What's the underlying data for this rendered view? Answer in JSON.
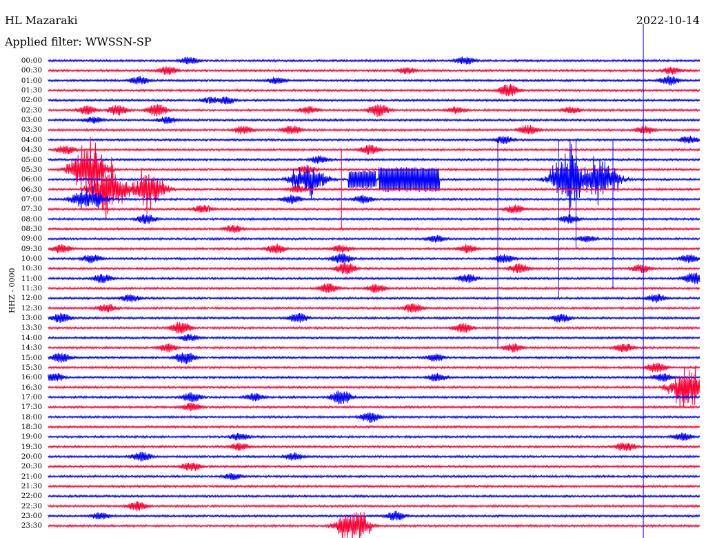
{
  "header": {
    "station": "HL Mazaraki",
    "date": "2022-10-14",
    "filter": "Applied filter: WWSSN-SP"
  },
  "channel_label": "HHZ - 0000",
  "colors": {
    "even_rows": "#0000ff",
    "odd_rows": "#ff0033",
    "marker": "#0000ff",
    "background": "#ffffff"
  },
  "chart_data": {
    "type": "line",
    "title": "HL Mazaraki",
    "subtitle": "Applied filter: WWSSN-SP",
    "ylabel": "HHZ - 0000",
    "grid": false,
    "row_labels": [
      "00:00",
      "00:30",
      "01:00",
      "01:30",
      "02:00",
      "02:30",
      "03:00",
      "03:30",
      "04:00",
      "04:30",
      "05:00",
      "05:30",
      "06:00",
      "06:30",
      "07:00",
      "07:30",
      "08:00",
      "08:30",
      "09:00",
      "09:30",
      "10:00",
      "10:30",
      "11:00",
      "11:30",
      "12:00",
      "12:30",
      "13:00",
      "13:30",
      "14:00",
      "14:30",
      "15:00",
      "15:30",
      "16:00",
      "16:30",
      "17:00",
      "17:30",
      "18:00",
      "18:30",
      "19:00",
      "19:30",
      "20:00",
      "20:30",
      "21:00",
      "21:30",
      "22:00",
      "22:30",
      "23:00",
      "23:30"
    ],
    "row_minutes": 30,
    "end_of_data_row": "00:00",
    "current_time_marker_minute": 27.4,
    "events": [
      {
        "row": "00:00",
        "minute": 6.5,
        "amp": 0.45
      },
      {
        "row": "00:00",
        "minute": 19.2,
        "amp": 0.5
      },
      {
        "row": "00:30",
        "minute": 5.5,
        "amp": 0.5
      },
      {
        "row": "00:30",
        "minute": 16.5,
        "amp": 0.4
      },
      {
        "row": "00:30",
        "minute": 28.7,
        "amp": 0.4
      },
      {
        "row": "01:00",
        "minute": 4.2,
        "amp": 0.5
      },
      {
        "row": "01:00",
        "minute": 10.5,
        "amp": 0.4
      },
      {
        "row": "01:00",
        "minute": 28.6,
        "amp": 0.55
      },
      {
        "row": "01:30",
        "minute": 21.2,
        "amp": 0.7
      },
      {
        "row": "02:00",
        "minute": 7.5,
        "amp": 0.4
      },
      {
        "row": "02:00",
        "minute": 8.2,
        "amp": 0.45
      },
      {
        "row": "02:30",
        "minute": 1.8,
        "amp": 0.5
      },
      {
        "row": "02:30",
        "minute": 3.2,
        "amp": 0.6
      },
      {
        "row": "02:30",
        "minute": 5.0,
        "amp": 0.7
      },
      {
        "row": "02:30",
        "minute": 12.0,
        "amp": 0.45
      },
      {
        "row": "02:30",
        "minute": 15.2,
        "amp": 0.75
      },
      {
        "row": "02:30",
        "minute": 18.8,
        "amp": 0.4
      },
      {
        "row": "02:30",
        "minute": 24.1,
        "amp": 0.4
      },
      {
        "row": "03:00",
        "minute": 2.1,
        "amp": 0.4
      },
      {
        "row": "03:00",
        "minute": 5.5,
        "amp": 0.45
      },
      {
        "row": "03:30",
        "minute": 9.0,
        "amp": 0.5
      },
      {
        "row": "03:30",
        "minute": 11.2,
        "amp": 0.5
      },
      {
        "row": "03:30",
        "minute": 22.1,
        "amp": 0.55
      },
      {
        "row": "03:30",
        "minute": 27.5,
        "amp": 0.5
      },
      {
        "row": "04:00",
        "minute": 21.0,
        "amp": 0.45
      },
      {
        "row": "04:00",
        "minute": 29.5,
        "amp": 0.45
      },
      {
        "row": "04:30",
        "minute": 0.8,
        "amp": 0.5
      },
      {
        "row": "04:30",
        "minute": 14.8,
        "amp": 0.55
      },
      {
        "row": "05:00",
        "minute": 12.5,
        "amp": 0.45
      },
      {
        "row": "05:30",
        "minute": 1.8,
        "amp": 1.6,
        "kind": "spikes"
      },
      {
        "row": "05:30",
        "minute": 11.9,
        "amp": 0.45
      },
      {
        "row": "06:00",
        "minute": 12.0,
        "amp": 1.2,
        "kind": "spikes"
      },
      {
        "row": "06:00",
        "minute": 13.8,
        "amp": 0.9,
        "kind": "block",
        "until": 15.1
      },
      {
        "row": "06:00",
        "minute": 15.2,
        "amp": 1.3,
        "kind": "block",
        "until": 18.0
      },
      {
        "row": "06:00",
        "minute": 24.0,
        "amp": 2.0,
        "kind": "spikes"
      },
      {
        "row": "06:00",
        "minute": 25.5,
        "amp": 1.5,
        "kind": "spikes"
      },
      {
        "row": "06:30",
        "minute": 2.8,
        "amp": 1.6,
        "kind": "spikes"
      },
      {
        "row": "06:30",
        "minute": 4.6,
        "amp": 1.2,
        "kind": "spikes"
      },
      {
        "row": "06:30",
        "minute": 11.5,
        "amp": 0.45
      },
      {
        "row": "07:00",
        "minute": 1.8,
        "amp": 0.8,
        "kind": "spikes"
      },
      {
        "row": "07:00",
        "minute": 11.2,
        "amp": 0.5
      },
      {
        "row": "07:00",
        "minute": 14.5,
        "amp": 0.5
      },
      {
        "row": "07:30",
        "minute": 7.1,
        "amp": 0.5
      },
      {
        "row": "07:30",
        "minute": 21.5,
        "amp": 0.5
      },
      {
        "row": "08:00",
        "minute": 4.5,
        "amp": 0.55
      },
      {
        "row": "08:00",
        "minute": 24.0,
        "amp": 0.5
      },
      {
        "row": "08:30",
        "minute": 8.5,
        "amp": 0.45
      },
      {
        "row": "09:00",
        "minute": 17.8,
        "amp": 0.45
      },
      {
        "row": "09:00",
        "minute": 24.8,
        "amp": 0.4
      },
      {
        "row": "09:30",
        "minute": 0.6,
        "amp": 0.5
      },
      {
        "row": "09:30",
        "minute": 10.5,
        "amp": 0.55
      },
      {
        "row": "09:30",
        "minute": 13.5,
        "amp": 0.45
      },
      {
        "row": "09:30",
        "minute": 19.3,
        "amp": 0.5
      },
      {
        "row": "10:00",
        "minute": 2.0,
        "amp": 0.5
      },
      {
        "row": "10:00",
        "minute": 13.5,
        "amp": 0.6
      },
      {
        "row": "10:00",
        "minute": 21.0,
        "amp": 0.55
      },
      {
        "row": "10:00",
        "minute": 29.5,
        "amp": 0.5
      },
      {
        "row": "10:30",
        "minute": 13.7,
        "amp": 0.7
      },
      {
        "row": "10:30",
        "minute": 21.7,
        "amp": 0.6
      },
      {
        "row": "10:30",
        "minute": 27.3,
        "amp": 0.5
      },
      {
        "row": "11:00",
        "minute": 2.5,
        "amp": 0.5
      },
      {
        "row": "11:00",
        "minute": 19.3,
        "amp": 0.5
      },
      {
        "row": "11:00",
        "minute": 29.7,
        "amp": 0.7
      },
      {
        "row": "11:30",
        "minute": 12.9,
        "amp": 0.55
      },
      {
        "row": "11:30",
        "minute": 15.1,
        "amp": 0.5
      },
      {
        "row": "12:00",
        "minute": 3.8,
        "amp": 0.45
      },
      {
        "row": "12:00",
        "minute": 28.0,
        "amp": 0.5
      },
      {
        "row": "12:30",
        "minute": 2.7,
        "amp": 0.5
      },
      {
        "row": "12:30",
        "minute": 16.8,
        "amp": 0.55
      },
      {
        "row": "13:00",
        "minute": 0.6,
        "amp": 0.6
      },
      {
        "row": "13:00",
        "minute": 11.5,
        "amp": 0.55
      },
      {
        "row": "13:00",
        "minute": 23.6,
        "amp": 0.5
      },
      {
        "row": "13:30",
        "minute": 6.1,
        "amp": 0.7
      },
      {
        "row": "13:30",
        "minute": 19.1,
        "amp": 0.55
      },
      {
        "row": "14:00",
        "minute": 6.5,
        "amp": 0.4
      },
      {
        "row": "14:30",
        "minute": 5.5,
        "amp": 0.5
      },
      {
        "row": "14:30",
        "minute": 21.4,
        "amp": 0.5
      },
      {
        "row": "14:30",
        "minute": 26.5,
        "amp": 0.5
      },
      {
        "row": "15:00",
        "minute": 0.6,
        "amp": 0.55
      },
      {
        "row": "15:00",
        "minute": 6.3,
        "amp": 0.7
      },
      {
        "row": "15:00",
        "minute": 17.8,
        "amp": 0.45
      },
      {
        "row": "15:30",
        "minute": 28.0,
        "amp": 0.55
      },
      {
        "row": "16:00",
        "minute": 0.3,
        "amp": 0.5
      },
      {
        "row": "16:00",
        "minute": 17.9,
        "amp": 0.5
      },
      {
        "row": "16:00",
        "minute": 28.3,
        "amp": 0.5
      },
      {
        "row": "16:30",
        "minute": 29.5,
        "amp": 1.4,
        "kind": "spikes"
      },
      {
        "row": "17:00",
        "minute": 6.6,
        "amp": 0.55
      },
      {
        "row": "17:00",
        "minute": 13.5,
        "amp": 0.8
      },
      {
        "row": "17:00",
        "minute": 9.5,
        "amp": 0.45
      },
      {
        "row": "17:30",
        "minute": 6.6,
        "amp": 0.45
      },
      {
        "row": "18:00",
        "minute": 14.8,
        "amp": 0.6
      },
      {
        "row": "19:00",
        "minute": 8.8,
        "amp": 0.45
      },
      {
        "row": "19:00",
        "minute": 29.2,
        "amp": 0.45
      },
      {
        "row": "19:30",
        "minute": 8.8,
        "amp": 0.45
      },
      {
        "row": "19:30",
        "minute": 26.6,
        "amp": 0.55
      },
      {
        "row": "20:00",
        "minute": 4.3,
        "amp": 0.55
      },
      {
        "row": "20:00",
        "minute": 11.3,
        "amp": 0.45
      },
      {
        "row": "20:30",
        "minute": 6.6,
        "amp": 0.55
      },
      {
        "row": "21:00",
        "minute": 8.5,
        "amp": 0.4
      },
      {
        "row": "22:30",
        "minute": 4.1,
        "amp": 0.55
      },
      {
        "row": "23:00",
        "minute": 2.4,
        "amp": 0.4
      },
      {
        "row": "23:00",
        "minute": 16.0,
        "amp": 0.55
      },
      {
        "row": "23:30",
        "minute": 14.0,
        "amp": 1.1,
        "kind": "spikes"
      }
    ],
    "long_spikes": [
      {
        "row": "04:00",
        "minute": 20.7,
        "to_row": "14:30"
      },
      {
        "row": "04:00",
        "minute": 23.5,
        "to_row": "12:00"
      },
      {
        "row": "04:00",
        "minute": 26.0,
        "to_row": "11:30"
      },
      {
        "row": "04:00",
        "minute": 24.3,
        "to_row": "09:30"
      },
      {
        "row": "04:30",
        "minute": 13.5,
        "to_row": "08:30"
      }
    ]
  }
}
